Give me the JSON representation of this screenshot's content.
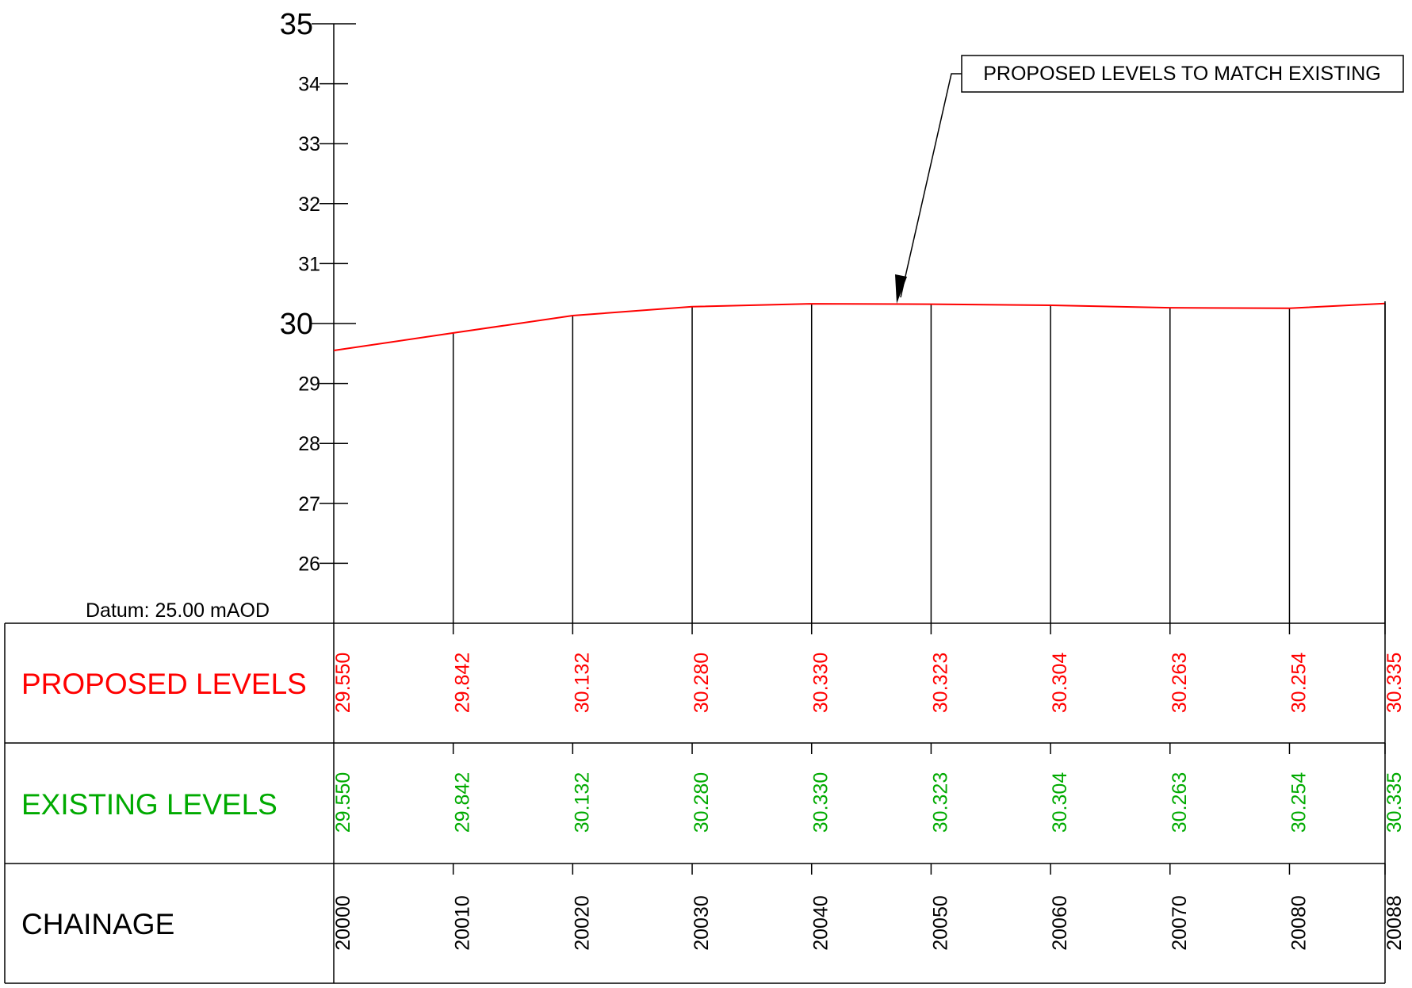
{
  "datum_label": "Datum: 25.00 mAOD",
  "annotation": "PROPOSED LEVELS TO MATCH EXISTING",
  "rows": {
    "proposed_label": "PROPOSED LEVELS",
    "existing_label": "EXISTING LEVELS",
    "chainage_label": "CHAINAGE"
  },
  "colors": {
    "proposed": "#ff0000",
    "existing": "#00aa00",
    "lines": "#000000"
  },
  "chart_data": {
    "type": "line",
    "ylim": [
      25,
      35
    ],
    "yticks": [
      {
        "value": 35,
        "label": "35",
        "major": true
      },
      {
        "value": 34,
        "label": "34",
        "major": false
      },
      {
        "value": 33,
        "label": "33",
        "major": false
      },
      {
        "value": 32,
        "label": "32",
        "major": false
      },
      {
        "value": 31,
        "label": "31",
        "major": false
      },
      {
        "value": 30,
        "label": "30",
        "major": true
      },
      {
        "value": 29,
        "label": "29",
        "major": false
      },
      {
        "value": 28,
        "label": "28",
        "major": false
      },
      {
        "value": 27,
        "label": "27",
        "major": false
      },
      {
        "value": 26,
        "label": "26",
        "major": false
      }
    ],
    "chainage": [
      "20000",
      "20010",
      "20020",
      "20030",
      "20040",
      "20050",
      "20060",
      "20070",
      "20080",
      "20088"
    ],
    "x": [
      20000,
      20010,
      20020,
      20030,
      20040,
      20050,
      20060,
      20070,
      20080,
      20088
    ],
    "proposed_labels": [
      "29.550",
      "29.842",
      "30.132",
      "30.280",
      "30.330",
      "30.323",
      "30.304",
      "30.263",
      "30.254",
      "30.335"
    ],
    "existing_labels": [
      "29.550",
      "29.842",
      "30.132",
      "30.280",
      "30.330",
      "30.323",
      "30.304",
      "30.263",
      "30.254",
      "30.335"
    ],
    "proposed_values": [
      29.55,
      29.842,
      30.132,
      30.28,
      30.33,
      30.323,
      30.304,
      30.263,
      30.254,
      30.335
    ],
    "existing_values": [
      29.55,
      29.842,
      30.132,
      30.28,
      30.33,
      30.323,
      30.304,
      30.263,
      30.254,
      30.335
    ],
    "annotation_target_chainage": 20047
  }
}
